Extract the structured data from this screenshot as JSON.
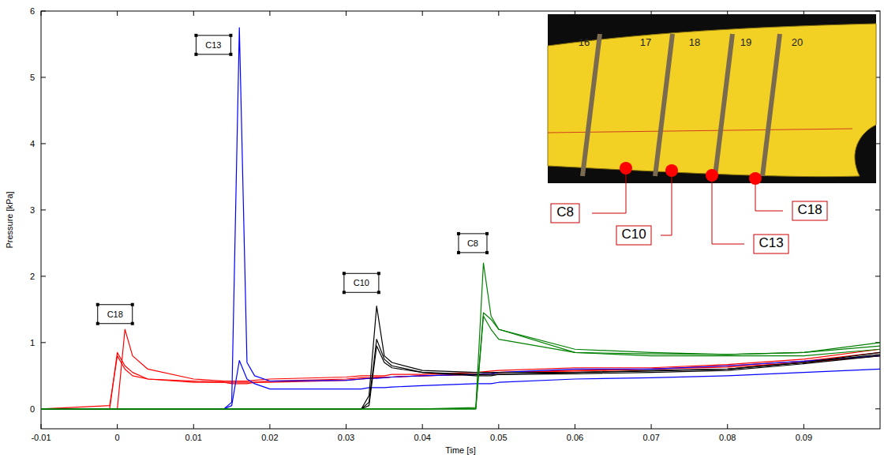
{
  "chart_data": {
    "type": "line",
    "x_label": "Time [s]",
    "y_label": "Pressure [kPa]",
    "xlim": [
      -0.01,
      0.1
    ],
    "ylim": [
      -0.3,
      6
    ],
    "xticks": [
      -0.01,
      0,
      0.01,
      0.02,
      0.03,
      0.04,
      0.05,
      0.06,
      0.07,
      0.08,
      0.09
    ],
    "yticks": [
      0,
      1,
      2,
      3,
      4,
      5,
      6
    ],
    "grid": false,
    "x": [
      -0.01,
      -0.001,
      0,
      0.001,
      0.002,
      0.004,
      0.01,
      0.014,
      0.015,
      0.016,
      0.017,
      0.018,
      0.02,
      0.03,
      0.032,
      0.033,
      0.034,
      0.035,
      0.036,
      0.04,
      0.047,
      0.048,
      0.049,
      0.05,
      0.06,
      0.07,
      0.08,
      0.09,
      0.1
    ],
    "series": [
      {
        "color": "#ff0000",
        "values": [
          0,
          0,
          0.85,
          0.65,
          0.55,
          0.45,
          0.42,
          0.4,
          0.4,
          0.4,
          0.4,
          0.4,
          0.42,
          0.45,
          0.47,
          0.47,
          0.48,
          0.48,
          0.48,
          0.5,
          0.52,
          0.52,
          0.53,
          0.55,
          0.58,
          0.6,
          0.65,
          0.72,
          0.85
        ]
      },
      {
        "color": "#ff0000",
        "values": [
          0,
          0.05,
          0.8,
          0.6,
          0.5,
          0.45,
          0.4,
          0.4,
          0.38,
          0.38,
          0.38,
          0.4,
          0.4,
          0.43,
          0.45,
          0.46,
          0.47,
          0.47,
          0.48,
          0.5,
          0.52,
          0.53,
          0.53,
          0.55,
          0.57,
          0.6,
          0.63,
          0.7,
          0.8
        ]
      },
      {
        "color": "#ff0000",
        "values": [
          0,
          0,
          0,
          1.2,
          0.8,
          0.6,
          0.45,
          0.42,
          0.42,
          0.42,
          0.42,
          0.43,
          0.45,
          0.48,
          0.5,
          0.5,
          0.5,
          0.5,
          0.52,
          0.52,
          0.55,
          0.56,
          0.57,
          0.58,
          0.62,
          0.62,
          0.67,
          0.75,
          0.9
        ]
      },
      {
        "color": "#0000ff",
        "values": [
          0,
          0,
          0,
          0,
          0,
          0,
          0,
          0,
          0.1,
          5.75,
          0.7,
          0.5,
          0.42,
          0.43,
          0.45,
          0.46,
          0.46,
          0.47,
          0.48,
          0.5,
          0.52,
          0.53,
          0.53,
          0.55,
          0.6,
          0.6,
          0.65,
          0.72,
          0.8
        ]
      },
      {
        "color": "#0000ff",
        "values": [
          0,
          0,
          0,
          0,
          0,
          0,
          0,
          0,
          0.05,
          0.73,
          0.45,
          0.38,
          0.3,
          0.3,
          0.3,
          0.32,
          0.32,
          0.32,
          0.33,
          0.35,
          0.38,
          0.38,
          0.38,
          0.4,
          0.45,
          0.47,
          0.5,
          0.55,
          0.6
        ]
      },
      {
        "color": "#000000",
        "values": [
          0,
          0,
          0,
          0,
          0,
          0,
          0,
          0,
          0,
          0,
          0,
          0,
          0,
          0,
          0,
          0.2,
          1.55,
          0.8,
          0.7,
          0.58,
          0.55,
          0.55,
          0.55,
          0.55,
          0.55,
          0.58,
          0.6,
          0.7,
          0.82
        ]
      },
      {
        "color": "#000000",
        "values": [
          0,
          0,
          0,
          0,
          0,
          0,
          0,
          0,
          0,
          0,
          0,
          0,
          0,
          0,
          0,
          0.1,
          1.05,
          0.75,
          0.65,
          0.55,
          0.5,
          0.5,
          0.5,
          0.52,
          0.53,
          0.55,
          0.58,
          0.68,
          0.8
        ]
      },
      {
        "color": "#000000",
        "values": [
          0,
          0,
          0,
          0,
          0,
          0,
          0,
          0,
          0,
          0,
          0,
          0,
          0,
          0,
          0,
          0.05,
          0.95,
          0.7,
          0.62,
          0.55,
          0.52,
          0.52,
          0.52,
          0.52,
          0.55,
          0.57,
          0.6,
          0.7,
          0.85
        ]
      },
      {
        "color": "#008000",
        "values": [
          0,
          0,
          0,
          0,
          0,
          0,
          0,
          0,
          0,
          0,
          0,
          0,
          0,
          0,
          0,
          0,
          0,
          0,
          0,
          0,
          0.02,
          2.2,
          1.4,
          1.2,
          0.9,
          0.85,
          0.82,
          0.85,
          0.95
        ]
      },
      {
        "color": "#008000",
        "values": [
          0,
          0,
          0,
          0,
          0,
          0,
          0,
          0,
          0,
          0,
          0,
          0,
          0,
          0,
          0,
          0,
          0,
          0,
          0,
          0,
          0,
          1.45,
          1.35,
          1.2,
          0.85,
          0.83,
          0.82,
          0.85,
          1.0
        ]
      },
      {
        "color": "#008000",
        "values": [
          0,
          0,
          0,
          0,
          0,
          0,
          0,
          0,
          0,
          0,
          0,
          0,
          0,
          0,
          0,
          0,
          0,
          0,
          0,
          0,
          0,
          1.4,
          1.2,
          1.05,
          0.85,
          0.8,
          0.8,
          0.8,
          0.9
        ]
      }
    ],
    "annotations": [
      {
        "text": "C18",
        "x": -0.0003,
        "y": 1.43
      },
      {
        "text": "C13",
        "x": 0.0126,
        "y": 5.49
      },
      {
        "text": "C10",
        "x": 0.032,
        "y": 1.9
      },
      {
        "text": "C8",
        "x": 0.0466,
        "y": 2.5
      }
    ],
    "inset": {
      "labels": [
        "C8",
        "C10",
        "C13",
        "C18"
      ],
      "frames": [
        "16",
        "17",
        "18",
        "19",
        "20"
      ]
    }
  }
}
